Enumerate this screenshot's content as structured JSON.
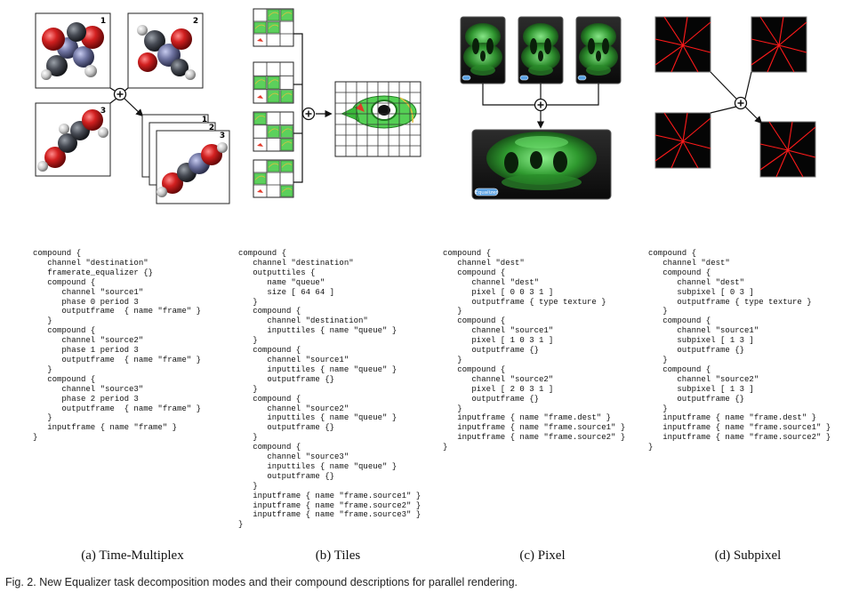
{
  "panels": [
    {
      "caption": "(a) Time-Multiplex",
      "code": [
        "compound {",
        "   channel \"destination\"",
        "   framerate_equalizer {}",
        "   compound {",
        "      channel \"source1\"",
        "      phase 0 period 3",
        "      outputframe  { name \"frame\" }",
        "   }",
        "   compound {",
        "      channel \"source2\"",
        "      phase 1 period 3",
        "      outputframe  { name \"frame\" }",
        "   }",
        "   compound {",
        "      channel \"source3\"",
        "      phase 2 period 3",
        "      outputframe  { name \"frame\" }",
        "   }",
        "   inputframe { name \"frame\" }",
        "}"
      ],
      "tile_numbers": [
        "1",
        "2",
        "3",
        "1",
        "2",
        "3"
      ]
    },
    {
      "caption": "(b) Tiles",
      "code": [
        "compound {",
        "   channel \"destination\"",
        "   outputtiles {",
        "      name \"queue\"",
        "      size [ 64 64 ]",
        "   }",
        "   compound {",
        "      channel \"destination\"",
        "      inputtiles { name \"queue\" }",
        "   }",
        "   compound {",
        "      channel \"source1\"",
        "      inputtiles { name \"queue\" }",
        "      outputframe {}",
        "   }",
        "   compound {",
        "      channel \"source2\"",
        "      inputtiles { name \"queue\" }",
        "      outputframe {}",
        "   }",
        "   compound {",
        "      channel \"source3\"",
        "      inputtiles { name \"queue\" }",
        "      outputframe {}",
        "   }",
        "   inputframe { name \"frame.source1\" }",
        "   inputframe { name \"frame.source2\" }",
        "   inputframe { name \"frame.source3\" }",
        "}"
      ]
    },
    {
      "caption": "(c) Pixel",
      "code": [
        "compound {",
        "   channel \"dest\"",
        "   compound {",
        "      channel \"dest\"",
        "      pixel [ 0 0 3 1 ]",
        "      outputframe { type texture }",
        "   }",
        "   compound {",
        "      channel \"source1\"",
        "      pixel [ 1 0 3 1 ]",
        "      outputframe {}",
        "   }",
        "   compound {",
        "      channel \"source2\"",
        "      pixel [ 2 0 3 1 ]",
        "      outputframe {}",
        "   }",
        "   inputframe { name \"frame.dest\" }",
        "   inputframe { name \"frame.source1\" }",
        "   inputframe { name \"frame.source2\" }",
        "}"
      ],
      "equalizer_label": "Equalizer"
    },
    {
      "caption": "(d) Subpixel",
      "code": [
        "compound {",
        "   channel \"dest\"",
        "   compound {",
        "      channel \"dest\"",
        "      subpixel [ 0 3 ]",
        "      outputframe { type texture }",
        "   }",
        "   compound {",
        "      channel \"source1\"",
        "      subpixel [ 1 3 ]",
        "      outputframe {}",
        "   }",
        "   compound {",
        "      channel \"source2\"",
        "      subpixel [ 1 3 ]",
        "      outputframe {}",
        "   }",
        "   inputframe { name \"frame.dest\" }",
        "   inputframe { name \"frame.source1\" }",
        "   inputframe { name \"frame.source2\" }",
        "}"
      ]
    }
  ],
  "figure_caption": "Fig. 2. New Equalizer task decomposition modes and their compound descriptions for parallel rendering.",
  "colors": {
    "green": "#3fbf3f",
    "red": "#ff1a1a",
    "molecule_red": "#cc1f1f",
    "molecule_grey": "#3d4048",
    "molecule_blue": "#6a6f9a"
  }
}
